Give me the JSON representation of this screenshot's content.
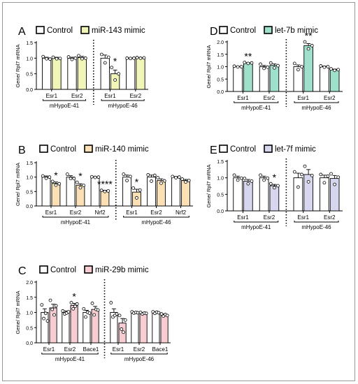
{
  "chart_data": [
    {
      "type": "bar",
      "panel": "A",
      "ylabel": "Gene/ Rpl7 mRNA",
      "ylim": [
        0,
        1.5
      ],
      "yticks": [
        "0.0",
        "0.5",
        "1.0",
        "1.5"
      ],
      "legend": [
        "Control",
        "miR-143 mimic"
      ],
      "treatment_color": "#f2f5b8",
      "groups": [
        {
          "label": "mHypoE-41",
          "categories": [
            {
              "name": "Esr1",
              "control": 1.0,
              "treatment": 1.0,
              "control_pts": [
                1.05,
                0.98,
                0.97
              ],
              "treatment_pts": [
                1.03,
                0.98,
                0.99
              ],
              "control_err": 0.03,
              "treatment_err": 0.03,
              "sig": ""
            },
            {
              "name": "Esr2",
              "control": 1.0,
              "treatment": 1.02,
              "control_pts": [
                1.04,
                0.96,
                1.0
              ],
              "treatment_pts": [
                1.08,
                0.98,
                1.0
              ],
              "control_err": 0.03,
              "treatment_err": 0.04,
              "sig": ""
            }
          ]
        },
        {
          "label": "mHypoE-46",
          "categories": [
            {
              "name": "Esr1",
              "control": 1.0,
              "treatment": 0.5,
              "control_pts": [
                1.12,
                0.85,
                1.03
              ],
              "treatment_pts": [
                0.7,
                0.3,
                0.5
              ],
              "control_err": 0.1,
              "treatment_err": 0.12,
              "sig": "*"
            },
            {
              "name": "Esr2",
              "control": 1.0,
              "treatment": 1.01,
              "control_pts": [
                1.0,
                0.99,
                1.0
              ],
              "treatment_pts": [
                1.02,
                1.0,
                1.01
              ],
              "control_err": 0.01,
              "treatment_err": 0.01,
              "sig": ""
            }
          ]
        }
      ]
    },
    {
      "type": "bar",
      "panel": "B",
      "ylabel": "Gene/ Rpl7 mRNA",
      "ylim": [
        0,
        1.5
      ],
      "yticks": [
        "0.0",
        "0.5",
        "1.0",
        "1.5"
      ],
      "legend": [
        "Control",
        "miR-140 mimic"
      ],
      "treatment_color": "#fbe0b6",
      "groups": [
        {
          "label": "mHypoE-41",
          "categories": [
            {
              "name": "Esr1",
              "control": 1.0,
              "treatment": 0.78,
              "control_pts": [
                1.04,
                0.96,
                1.0
              ],
              "treatment_pts": [
                0.85,
                0.72,
                0.77
              ],
              "control_err": 0.04,
              "treatment_err": 0.05,
              "sig": "*"
            },
            {
              "name": "Esr2",
              "control": 1.0,
              "treatment": 0.72,
              "control_pts": [
                1.1,
                0.95,
                0.95
              ],
              "treatment_pts": [
                0.82,
                0.63,
                0.71
              ],
              "control_err": 0.05,
              "treatment_err": 0.05,
              "sig": "*"
            },
            {
              "name": "Nrf2",
              "control": 1.0,
              "treatment": 0.52,
              "control_pts": [
                1.01,
                0.99,
                1.0
              ],
              "treatment_pts": [
                0.54,
                0.5,
                0.52
              ],
              "control_err": 0.01,
              "treatment_err": 0.02,
              "sig": "****"
            }
          ]
        },
        {
          "label": "mHypoE-46",
          "categories": [
            {
              "name": "Esr1",
              "control": 1.0,
              "treatment": 0.48,
              "control_pts": [
                1.1,
                0.88,
                1.02
              ],
              "treatment_pts": [
                0.62,
                0.28,
                0.55
              ],
              "control_err": 0.07,
              "treatment_err": 0.1,
              "sig": "*"
            },
            {
              "name": "Esr2",
              "control": 1.0,
              "treatment": 0.88,
              "control_pts": [
                1.08,
                0.86,
                1.06
              ],
              "treatment_pts": [
                0.98,
                0.79,
                0.87
              ],
              "control_err": 0.07,
              "treatment_err": 0.06,
              "sig": ""
            },
            {
              "name": "Nrf2",
              "control": 1.0,
              "treatment": 0.88,
              "control_pts": [
                1.02,
                0.98,
                1.0
              ],
              "treatment_pts": [
                0.93,
                0.83,
                0.88
              ],
              "control_err": 0.02,
              "treatment_err": 0.04,
              "sig": ""
            }
          ]
        }
      ]
    },
    {
      "type": "bar",
      "panel": "C",
      "ylabel": "Gene/ Rpl7 mRNA",
      "ylim": [
        0,
        2.0
      ],
      "yticks": [
        "0.0",
        "0.5",
        "1.0",
        "1.5",
        "2.0"
      ],
      "legend": [
        "Control",
        "miR-29b mimic"
      ],
      "treatment_color": "#f7cdd2",
      "groups": [
        {
          "label": "mHypoE-41",
          "categories": [
            {
              "name": "Esr1",
              "control": 1.0,
              "treatment": 1.15,
              "control_pts": [
                1.25,
                0.8,
                0.97,
                0.72
              ],
              "treatment_pts": [
                1.4,
                1.1,
                0.92,
                1.22
              ],
              "control_err": 0.12,
              "treatment_err": 0.12,
              "sig": ""
            },
            {
              "name": "Esr2",
              "control": 1.0,
              "treatment": 1.23,
              "control_pts": [
                1.05,
                0.95,
                0.98,
                1.02
              ],
              "treatment_pts": [
                1.32,
                1.12,
                1.2,
                1.28
              ],
              "control_err": 0.05,
              "treatment_err": 0.07,
              "sig": "*"
            },
            {
              "name": "Bace1",
              "control": 1.0,
              "treatment": 1.1,
              "control_pts": [
                1.12,
                0.85,
                1.0,
                0.98
              ],
              "treatment_pts": [
                1.3,
                0.92,
                1.1,
                1.08
              ],
              "control_err": 0.07,
              "treatment_err": 0.1,
              "sig": ""
            }
          ]
        },
        {
          "label": "mHypoE-46",
          "categories": [
            {
              "name": "Esr1",
              "control": 1.0,
              "treatment": 0.65,
              "control_pts": [
                1.32,
                0.85,
                0.9,
                0.95
              ],
              "treatment_pts": [
                0.9,
                0.45,
                0.35,
                0.75
              ],
              "control_err": 0.12,
              "treatment_err": 0.15,
              "sig": ""
            },
            {
              "name": "Esr2",
              "control": 1.0,
              "treatment": 0.98,
              "control_pts": [
                1.02,
                0.98,
                1.0,
                0.99
              ],
              "treatment_pts": [
                1.0,
                0.95,
                0.98,
                0.97
              ],
              "control_err": 0.02,
              "treatment_err": 0.02,
              "sig": ""
            },
            {
              "name": "Bace1",
              "control": 1.0,
              "treatment": 0.93,
              "control_pts": [
                1.02,
                0.97,
                1.01,
                0.99
              ],
              "treatment_pts": [
                0.95,
                0.88,
                0.93,
                0.9
              ],
              "control_err": 0.02,
              "treatment_err": 0.02,
              "sig": ""
            }
          ]
        }
      ]
    },
    {
      "type": "bar",
      "panel": "D",
      "ylabel": "Gene/ Rpl7 mRNA",
      "ylim": [
        0,
        2.0
      ],
      "yticks": [
        "0.0",
        "0.5",
        "1.0",
        "1.5",
        "2.0"
      ],
      "legend": [
        "Control",
        "let-7b mimic"
      ],
      "treatment_color": "#9fe0cc",
      "groups": [
        {
          "label": "mHypoE-41",
          "categories": [
            {
              "name": "Esr1",
              "control": 1.0,
              "treatment": 1.15,
              "control_pts": [
                1.02,
                0.99,
                1.0
              ],
              "treatment_pts": [
                1.17,
                1.13,
                1.15
              ],
              "control_err": 0.01,
              "treatment_err": 0.01,
              "sig": "**"
            },
            {
              "name": "Esr2",
              "control": 1.0,
              "treatment": 1.05,
              "control_pts": [
                1.1,
                0.93,
                0.98
              ],
              "treatment_pts": [
                1.15,
                0.95,
                1.04
              ],
              "control_err": 0.05,
              "treatment_err": 0.06,
              "sig": ""
            }
          ]
        },
        {
          "label": "mHypoE-46",
          "categories": [
            {
              "name": "Esr1",
              "control": 1.0,
              "treatment": 1.85,
              "control_pts": [
                1.13,
                0.88,
                1.0
              ],
              "treatment_pts": [
                2.0,
                1.72,
                1.85
              ],
              "control_err": 0.07,
              "treatment_err": 0.08,
              "sig": "**"
            },
            {
              "name": "Esr2",
              "control": 1.0,
              "treatment": 0.88,
              "control_pts": [
                1.03,
                0.98,
                1.0
              ],
              "treatment_pts": [
                0.91,
                0.85,
                0.88
              ],
              "control_err": 0.02,
              "treatment_err": 0.02,
              "sig": ""
            }
          ]
        }
      ]
    },
    {
      "type": "bar",
      "panel": "E",
      "ylabel": "Gene/ Rpl7 mRNA",
      "ylim": [
        0,
        1.5
      ],
      "yticks": [
        "0.0",
        "0.5",
        "1.0",
        "1.5"
      ],
      "legend": [
        "Control",
        "let-7f mimic"
      ],
      "treatment_color": "#d6d6ef",
      "groups": [
        {
          "label": "mHypoE-41",
          "categories": [
            {
              "name": "Esr1",
              "control": 1.0,
              "treatment": 0.9,
              "control_pts": [
                1.08,
                0.93,
                0.99
              ],
              "treatment_pts": [
                0.98,
                0.82,
                0.9
              ],
              "control_err": 0.05,
              "treatment_err": 0.05,
              "sig": ""
            },
            {
              "name": "Esr2",
              "control": 1.0,
              "treatment": 0.76,
              "control_pts": [
                1.08,
                0.93,
                0.99
              ],
              "treatment_pts": [
                0.82,
                0.7,
                0.76
              ],
              "control_err": 0.05,
              "treatment_err": 0.04,
              "sig": "*"
            }
          ]
        },
        {
          "label": "mHypoE-46",
          "categories": [
            {
              "name": "Esr1",
              "control": 1.0,
              "treatment": 1.1,
              "control_pts": [
                1.18,
                0.72,
                1.1
              ],
              "treatment_pts": [
                1.35,
                0.88,
                1.07
              ],
              "control_err": 0.14,
              "treatment_err": 0.15,
              "sig": ""
            },
            {
              "name": "Esr2",
              "control": 1.0,
              "treatment": 0.98,
              "control_pts": [
                1.1,
                0.85,
                1.05
              ],
              "treatment_pts": [
                1.12,
                0.8,
                1.02
              ],
              "control_err": 0.08,
              "treatment_err": 0.09,
              "sig": ""
            }
          ]
        }
      ]
    }
  ]
}
